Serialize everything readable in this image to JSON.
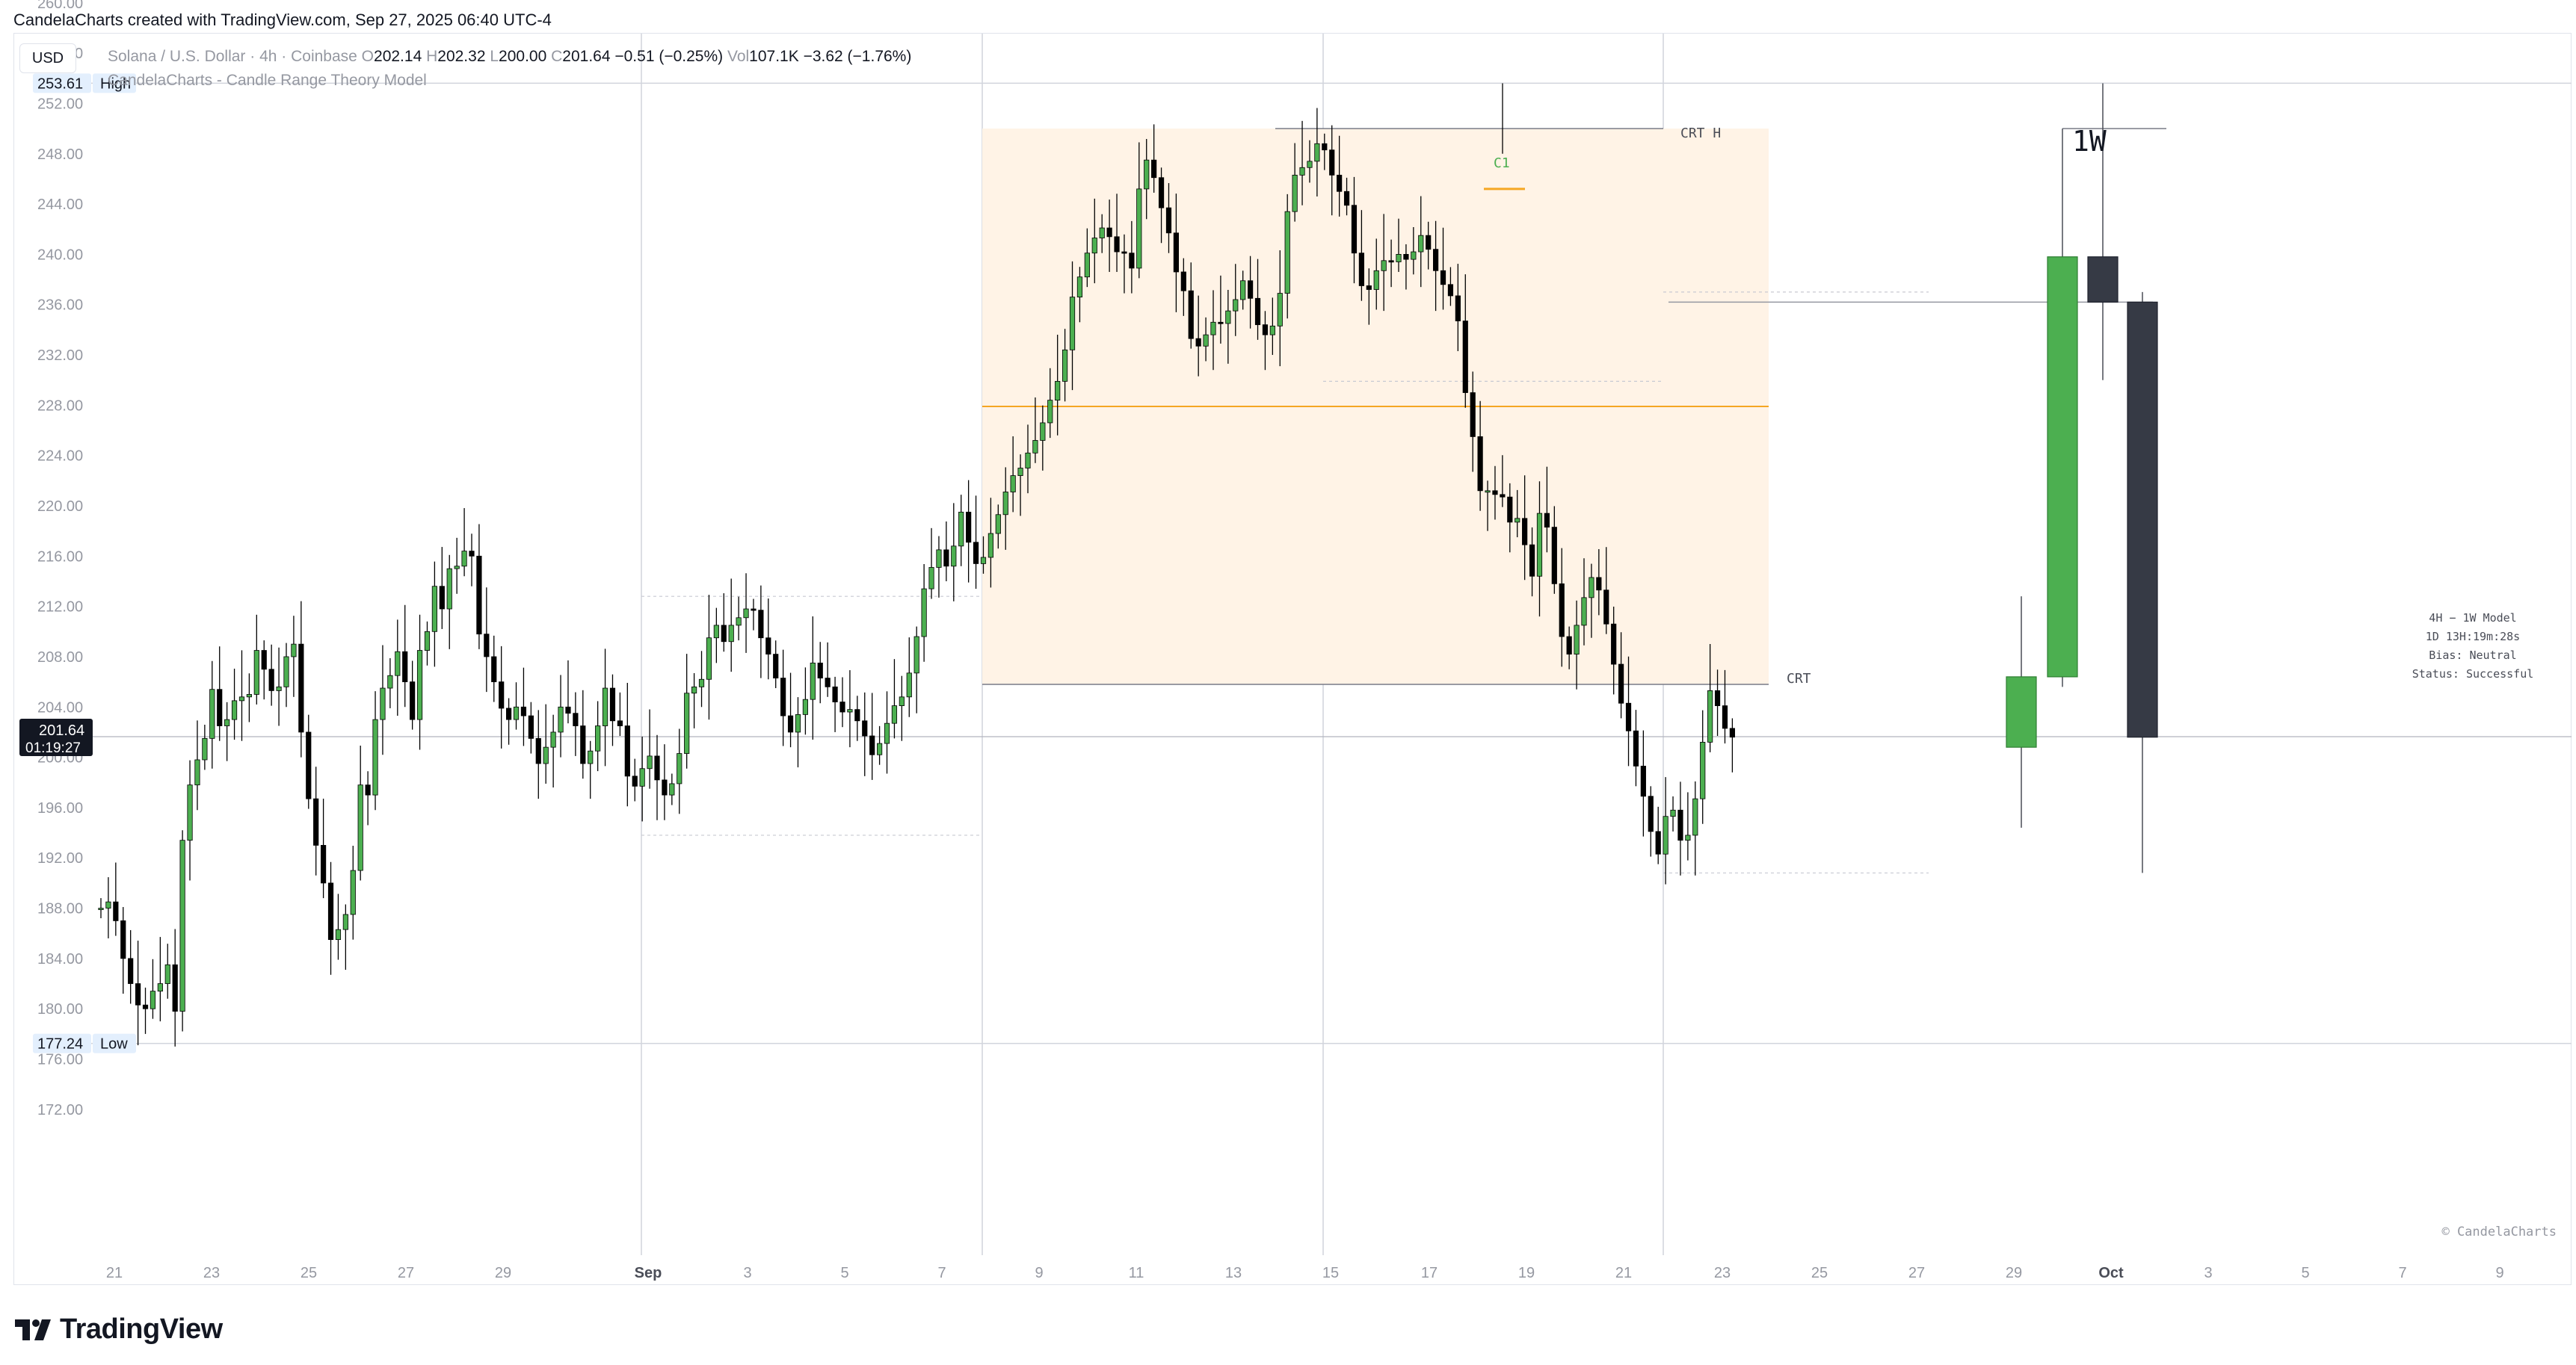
{
  "header": {
    "caption": "CandelaCharts created with TradingView.com, Sep 27, 2025 06:40 UTC-4"
  },
  "toolbar": {
    "currency": "USD"
  },
  "legend": {
    "symbol": "Solana / U.S. Dollar · 4h · Coinbase",
    "open_label": "O",
    "open": "202.14",
    "high_label": "H",
    "high": "202.32",
    "low_label": "L",
    "low": "200.00",
    "close_label": "C",
    "close": "201.64",
    "change": "−0.51 (−0.25%)",
    "vol_label": "Vol",
    "vol": "107.1K",
    "vol_change": "−3.62 (−1.76%)",
    "indicator": "CandelaCharts - Candle Range Theory Model"
  },
  "footer": {
    "brand": "TradingView",
    "copyright": "© CandelaCharts"
  },
  "info_box": {
    "line1": "4H − 1W Model",
    "line2": "1D 13H:19m:28s",
    "line3": "Bias: Neutral",
    "line4": "Status: Successful"
  },
  "colors": {
    "up": "#4caf50",
    "down": "#000000",
    "htf_down": "#363a45",
    "range_fill": "#fff3e6",
    "mid_line": "#f5a623",
    "grid": "#d1d4dc",
    "text": "#131722"
  },
  "chart_data": {
    "type": "candlestick",
    "symbol": "SOLUSD",
    "timeframe": "4h",
    "ylim": [
      168,
      264
    ],
    "y_ticks": [
      "260.00",
      "256.00",
      "252.00",
      "248.00",
      "244.00",
      "240.00",
      "236.00",
      "232.00",
      "228.00",
      "224.00",
      "220.00",
      "216.00",
      "212.00",
      "208.00",
      "204.00",
      "200.00",
      "196.00",
      "192.00",
      "188.00",
      "184.00",
      "180.00",
      "176.00",
      "172.00"
    ],
    "x_tick_labels": [
      "21",
      "23",
      "25",
      "27",
      "29",
      "Sep",
      "3",
      "5",
      "7",
      "9",
      "11",
      "13",
      "15",
      "17",
      "19",
      "21",
      "23",
      "25",
      "27",
      "29",
      "Oct",
      "3",
      "5",
      "7",
      "9"
    ],
    "price_markers": [
      {
        "label": "High",
        "value": "253.61"
      },
      {
        "label": "Low",
        "value": "177.24"
      }
    ],
    "last_price": {
      "value": "201.64",
      "countdown": "01:19:27"
    },
    "crt_range": {
      "high": 250.0,
      "low": 205.8,
      "mid": 227.9
    },
    "annotations": {
      "c1": "C1",
      "crt_high": "CRT H",
      "crt_low": "CRT",
      "htf_title": "1W"
    },
    "htf_candles": [
      {
        "open": 200.8,
        "high": 212.8,
        "low": 194.4,
        "close": 206.4,
        "dir": "up"
      },
      {
        "open": 206.4,
        "high": 250.0,
        "low": 205.6,
        "close": 239.8,
        "dir": "up"
      },
      {
        "open": 239.8,
        "high": 253.6,
        "low": 230.0,
        "close": 236.2,
        "dir": "down"
      },
      {
        "open": 236.2,
        "high": 237.0,
        "low": 190.8,
        "close": 201.6,
        "dir": "down"
      }
    ],
    "closes_4h": [
      188,
      188.5,
      187,
      184,
      182,
      180.3,
      180,
      181.4,
      182,
      183.5,
      179.8,
      193.4,
      197.8,
      199.8,
      201.5,
      205.4,
      202.5,
      203,
      204.5,
      204.8,
      205,
      208.5,
      207,
      205.3,
      205.6,
      208,
      209,
      202,
      196.7,
      193,
      190,
      185.5,
      186.3,
      187.5,
      191,
      197.8,
      197,
      203,
      205.5,
      206.5,
      208.4,
      206,
      203,
      208.5,
      210,
      213.6,
      211.8,
      215,
      215.2,
      216.4,
      216,
      209.8,
      208,
      206,
      203.9,
      203,
      204,
      203.3,
      201.5,
      199.5,
      200.8,
      202,
      204,
      203.5,
      202.5,
      199.5,
      200.5,
      202.5,
      205.5,
      202.9,
      202.5,
      198.5,
      197.7,
      199.1,
      200.1,
      198.2,
      197,
      197.9,
      200.3,
      205.1,
      205.6,
      206.2,
      209.5,
      210.5,
      209.2,
      210.5,
      211.1,
      211.8,
      211.7,
      209.5,
      208.2,
      206.3,
      203.3,
      202,
      203.4,
      204.6,
      207.5,
      206.3,
      205.6,
      204.4,
      203.6,
      203.8,
      202.9,
      201.7,
      200.2,
      201.1,
      202.7,
      204.1,
      204.8,
      206.7,
      209.6,
      213.4,
      215.1,
      216.5,
      215.2,
      216.8,
      219.5,
      217.1,
      215.4,
      215.9,
      217.8,
      219.3,
      221.1,
      222.4,
      223,
      224.2,
      225.2,
      226.6,
      228.4,
      229.9,
      232.4,
      236.6,
      238.2,
      240.1,
      241.3,
      242.1,
      241.4,
      240.2,
      240.1,
      238.9,
      245.2,
      247.5,
      246.1,
      243.7,
      241.7,
      238.6,
      237.1,
      233.3,
      232.7,
      233.6,
      234.6,
      234.5,
      235.5,
      236.4,
      237.9,
      236.5,
      234.4,
      233.6,
      234.3,
      236.9,
      243.4,
      246.3,
      246.9,
      247.4,
      248.8,
      248.3,
      246.3,
      245,
      243.9,
      240.1,
      237.5,
      237.2,
      238.7,
      239.5,
      239.4,
      240,
      239.6,
      240.2,
      241.5,
      240.4,
      238.7,
      237.6,
      236.7,
      234.7,
      229,
      225.5,
      221.2,
      221.2,
      220.9,
      220.7,
      218.7,
      219,
      216.9,
      214.4,
      219.4,
      218.3,
      213.8,
      209.6,
      208.2,
      210.5,
      212.7,
      214.3,
      213.3,
      210.6,
      207.4,
      204.3,
      202.1,
      199.3,
      196.9,
      194.1,
      192.3,
      195.3,
      195.8,
      193.4,
      193.8,
      196.7,
      201.2,
      205.3,
      204.1,
      202.3,
      201.6
    ]
  }
}
